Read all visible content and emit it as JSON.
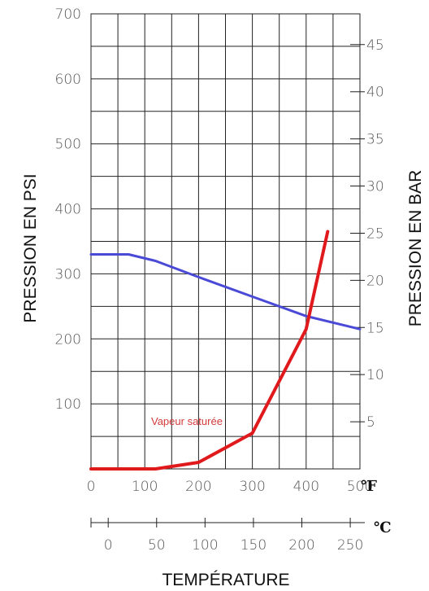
{
  "chart_data": {
    "type": "line",
    "x_unit_primary": "℉",
    "x_unit_secondary": "℃",
    "xlabel": "TEMPÉRATURE",
    "ylabel_left": "PRESSION EN PSI",
    "ylabel_right": "PRESSION EN BAR",
    "xlim_f": [
      0,
      500
    ],
    "ylim_psi": [
      0,
      700
    ],
    "x_ticks_f": [
      "0",
      "100",
      "200",
      "300",
      "400",
      "500"
    ],
    "x_ticks_c": [
      "0",
      "50",
      "100",
      "150",
      "200",
      "250"
    ],
    "y_ticks_psi": [
      "100",
      "200",
      "300",
      "400",
      "500",
      "600",
      "700"
    ],
    "y_ticks_bar": [
      "5",
      "10",
      "15",
      "20",
      "25",
      "30",
      "35",
      "40",
      "45"
    ],
    "grid": true,
    "series": [
      {
        "color": "#4a4ad6",
        "points": [
          [
            0,
            330
          ],
          [
            70,
            330
          ],
          [
            120,
            320
          ],
          [
            200,
            295
          ],
          [
            300,
            265
          ],
          [
            400,
            235
          ],
          [
            500,
            215
          ]
        ]
      },
      {
        "color": "#e0191c",
        "points": [
          [
            0,
            0
          ],
          [
            120,
            0
          ],
          [
            200,
            10
          ],
          [
            300,
            55
          ],
          [
            400,
            215
          ],
          [
            440,
            365
          ]
        ]
      }
    ],
    "annotations": [
      {
        "text": "Vapeur saturée",
        "x": 215,
        "y": 45,
        "color": "#d33a3a"
      }
    ]
  }
}
